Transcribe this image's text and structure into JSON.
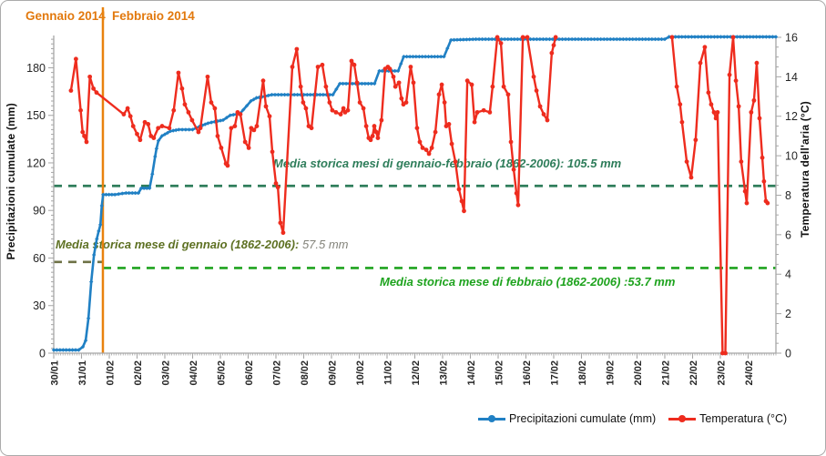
{
  "months": {
    "january_label": "Gennaio 2014",
    "february_label": "Febbraio 2014",
    "divider_color": "#e8820e"
  },
  "axes": {
    "left": {
      "title": "Precipitazioni cumulate (mm)",
      "ticks": [
        0,
        30,
        60,
        90,
        120,
        150,
        180
      ],
      "max": 200
    },
    "right": {
      "title": "Temperatura dell'aria (°C)",
      "ticks": [
        0,
        2,
        4,
        6,
        8,
        10,
        12,
        14,
        16
      ],
      "max": 16
    },
    "x": {
      "labels": [
        "30/01",
        "31/01",
        "01/02",
        "02/02",
        "03/02",
        "04/02",
        "05/02",
        "06/02",
        "07/02",
        "08/02",
        "09/02",
        "10/02",
        "11/02",
        "12/02",
        "13/02",
        "14/02",
        "15/02",
        "16/02",
        "17/02",
        "18/02",
        "19/02",
        "20/02",
        "21/02",
        "22/02",
        "23/02",
        "24/02"
      ]
    }
  },
  "annotations": {
    "jan_feb": {
      "text": "Media storica mesi di gennaio-febbraio (1862-2006): 105.5 mm",
      "value_mm": 105.5,
      "color": "#2e7d5a"
    },
    "jan": {
      "text_bold": "Media storica mese di gennaio (1862-2006):",
      "text_value": " 57.5 mm",
      "value_mm": 57.5,
      "color_bold": "#5e7123",
      "color_value": "#83837a",
      "line_color": "#6e7246"
    },
    "feb": {
      "text": "Media storica mese di febbraio (1862-2006) :53.7 mm",
      "value_mm": 53.7,
      "color": "#1ea31e"
    }
  },
  "legend": [
    {
      "label": "Precipitazioni cumulate (mm)",
      "color": "#2080c4"
    },
    {
      "label": "Temperatura (°C)",
      "color": "#ee2c1e"
    }
  ],
  "chart_data": {
    "type": "line",
    "title": "",
    "x_unit": "days since 30/01/2014 00:00",
    "x_tick_labels": [
      "30/01",
      "31/01",
      "01/02",
      "02/02",
      "03/02",
      "04/02",
      "05/02",
      "06/02",
      "07/02",
      "08/02",
      "09/02",
      "10/02",
      "11/02",
      "12/02",
      "13/02",
      "14/02",
      "15/02",
      "16/02",
      "17/02",
      "18/02",
      "19/02",
      "20/02",
      "21/02",
      "22/02",
      "23/02",
      "24/02"
    ],
    "x_range_days": [
      0,
      26
    ],
    "month_boundary_day": 1.77,
    "left_axis": {
      "label": "Precipitazioni cumulate (mm)",
      "range": [
        0,
        200
      ]
    },
    "right_axis": {
      "label": "Temperatura dell'aria (°C)",
      "range": [
        0,
        16
      ]
    },
    "reference_lines": [
      {
        "name": "media-storica-gennaio-febbraio",
        "value_mm": 105.5,
        "span_days": [
          0,
          26
        ],
        "color": "#2e7d5a"
      },
      {
        "name": "media-storica-gennaio",
        "value_mm": 57.5,
        "span_days": [
          0,
          1.77
        ],
        "color": "#6e7246"
      },
      {
        "name": "media-storica-febbraio",
        "value_mm": 53.7,
        "span_days": [
          1.77,
          26
        ],
        "color": "#1ea31e"
      }
    ],
    "series": [
      {
        "name": "Precipitazioni cumulate (mm)",
        "axis": "left",
        "color": "#2080c4",
        "marker": "diamond",
        "points": [
          [
            0,
            2
          ],
          [
            0.9,
            2
          ],
          [
            1.05,
            4
          ],
          [
            1.15,
            8
          ],
          [
            1.25,
            22
          ],
          [
            1.35,
            45
          ],
          [
            1.45,
            62
          ],
          [
            1.55,
            72
          ],
          [
            1.62,
            77
          ],
          [
            1.68,
            81
          ],
          [
            1.73,
            93
          ],
          [
            1.78,
            100
          ],
          [
            2.2,
            100
          ],
          [
            2.6,
            101
          ],
          [
            3.05,
            101
          ],
          [
            3.15,
            104
          ],
          [
            3.45,
            104
          ],
          [
            3.55,
            113
          ],
          [
            3.65,
            124
          ],
          [
            3.7,
            129
          ],
          [
            3.77,
            134
          ],
          [
            3.9,
            137
          ],
          [
            4,
            138
          ],
          [
            4.2,
            140
          ],
          [
            4.5,
            141
          ],
          [
            5,
            141
          ],
          [
            5.25,
            143
          ],
          [
            5.55,
            145
          ],
          [
            5.8,
            146
          ],
          [
            6.1,
            147
          ],
          [
            6.35,
            150
          ],
          [
            6.7,
            151
          ],
          [
            6.95,
            156
          ],
          [
            7.1,
            159
          ],
          [
            7.3,
            161
          ],
          [
            7.6,
            162
          ],
          [
            7.85,
            163
          ],
          [
            10.05,
            163
          ],
          [
            10.3,
            170
          ],
          [
            11.55,
            170
          ],
          [
            11.72,
            178
          ],
          [
            12.4,
            178
          ],
          [
            12.6,
            187
          ],
          [
            14.05,
            187
          ],
          [
            14.3,
            197.5
          ],
          [
            15.2,
            198
          ],
          [
            22,
            198
          ],
          [
            22.15,
            199.5
          ],
          [
            26,
            199.5
          ]
        ]
      },
      {
        "name": "Temperatura (°C)",
        "axis": "right",
        "color": "#ee2c1e",
        "marker": "circle",
        "segments": [
          [
            [
              0.62,
              13.3
            ],
            [
              0.8,
              14.9
            ],
            [
              0.97,
              12.3
            ],
            [
              1.04,
              11.2
            ],
            [
              1.1,
              11
            ],
            [
              1.18,
              10.7
            ],
            [
              1.3,
              14
            ],
            [
              1.43,
              13.4
            ],
            [
              1.54,
              13.2
            ],
            [
              2.52,
              12.1
            ],
            [
              2.66,
              12.4
            ],
            [
              2.76,
              12
            ],
            [
              2.86,
              11.5
            ],
            [
              3,
              11.1
            ],
            [
              3.11,
              10.8
            ],
            [
              3.28,
              11.7
            ],
            [
              3.4,
              11.6
            ],
            [
              3.5,
              11
            ],
            [
              3.6,
              10.9
            ],
            [
              3.76,
              11.4
            ],
            [
              3.9,
              11.5
            ],
            [
              4.16,
              11.4
            ],
            [
              4.32,
              12.3
            ],
            [
              4.49,
              14.2
            ],
            [
              4.62,
              13.4
            ],
            [
              4.72,
              12.6
            ],
            [
              4.85,
              12.2
            ],
            [
              4.98,
              11.8
            ],
            [
              5.21,
              11.2
            ],
            [
              5.28,
              11.4
            ],
            [
              5.54,
              14
            ],
            [
              5.67,
              12.7
            ],
            [
              5.8,
              12.4
            ],
            [
              5.9,
              11
            ],
            [
              6.03,
              10.4
            ],
            [
              6.2,
              9.6
            ],
            [
              6.26,
              9.5
            ],
            [
              6.39,
              11.4
            ],
            [
              6.52,
              11.5
            ],
            [
              6.62,
              12.2
            ],
            [
              6.72,
              12.1
            ],
            [
              6.89,
              10.7
            ],
            [
              7.02,
              10.4
            ],
            [
              7.11,
              11.4
            ],
            [
              7.21,
              11.3
            ],
            [
              7.31,
              11.5
            ],
            [
              7.54,
              13.8
            ],
            [
              7.64,
              12.5
            ],
            [
              7.77,
              12
            ],
            [
              7.87,
              10.2
            ],
            [
              8,
              8.6
            ],
            [
              8.07,
              8.4
            ],
            [
              8.16,
              6.6
            ],
            [
              8.26,
              6.1
            ],
            [
              8.59,
              14.5
            ],
            [
              8.75,
              15.4
            ],
            [
              8.89,
              13.5
            ],
            [
              8.98,
              12.7
            ],
            [
              9.08,
              12.4
            ],
            [
              9.18,
              11.5
            ],
            [
              9.28,
              11.4
            ],
            [
              9.51,
              14.5
            ],
            [
              9.67,
              14.6
            ],
            [
              9.8,
              13.5
            ],
            [
              9.93,
              12.7
            ],
            [
              10.03,
              12.3
            ],
            [
              10.16,
              12.2
            ],
            [
              10.33,
              12.1
            ],
            [
              10.43,
              12.4
            ],
            [
              10.49,
              12.2
            ],
            [
              10.59,
              12.3
            ],
            [
              10.72,
              14.8
            ],
            [
              10.82,
              14.6
            ],
            [
              10.92,
              13.7
            ],
            [
              11.02,
              12.7
            ],
            [
              11.15,
              12.4
            ],
            [
              11.25,
              11.5
            ],
            [
              11.34,
              10.9
            ],
            [
              11.41,
              10.8
            ],
            [
              11.48,
              11
            ],
            [
              11.54,
              11.5
            ],
            [
              11.61,
              11.2
            ],
            [
              11.67,
              10.9
            ],
            [
              11.8,
              11.8
            ],
            [
              11.93,
              14.4
            ],
            [
              12.03,
              14.5
            ],
            [
              12.1,
              14.4
            ],
            [
              12.23,
              14
            ],
            [
              12.3,
              13.5
            ],
            [
              12.43,
              13.7
            ],
            [
              12.52,
              12.9
            ],
            [
              12.59,
              12.6
            ],
            [
              12.69,
              12.7
            ],
            [
              12.85,
              14.5
            ],
            [
              12.95,
              13.7
            ],
            [
              13.08,
              11.4
            ],
            [
              13.18,
              10.7
            ],
            [
              13.28,
              10.4
            ],
            [
              13.41,
              10.3
            ],
            [
              13.51,
              10.1
            ],
            [
              13.61,
              10.4
            ],
            [
              13.74,
              11.2
            ],
            [
              13.87,
              13.1
            ],
            [
              13.97,
              13.6
            ],
            [
              14.07,
              12.7
            ],
            [
              14.13,
              11.5
            ],
            [
              14.23,
              11.6
            ],
            [
              14.33,
              10.6
            ],
            [
              14.46,
              9.7
            ],
            [
              14.59,
              8.3
            ],
            [
              14.69,
              7.7
            ],
            [
              14.77,
              7.2
            ],
            [
              14.89,
              13.8
            ],
            [
              15.05,
              13.6
            ],
            [
              15.15,
              11.7
            ],
            [
              15.25,
              12.2
            ],
            [
              15.48,
              12.3
            ],
            [
              15.7,
              12.2
            ],
            [
              15.8,
              13.5
            ],
            [
              15.97,
              16
            ],
            [
              16.1,
              15.7
            ],
            [
              16.2,
              13.5
            ],
            [
              16.36,
              13.1
            ],
            [
              16.46,
              10.7
            ],
            [
              16.56,
              9.3
            ],
            [
              16.66,
              8.1
            ],
            [
              16.72,
              7.5
            ],
            [
              16.89,
              16
            ],
            [
              17.05,
              16
            ],
            [
              17.28,
              14
            ],
            [
              17.38,
              13.3
            ],
            [
              17.51,
              12.5
            ],
            [
              17.64,
              12.1
            ],
            [
              17.77,
              11.8
            ],
            [
              17.93,
              15.2
            ],
            [
              18,
              15.6
            ],
            [
              18.07,
              16
            ]
          ],
          [
            [
              22.26,
              16
            ],
            [
              22.43,
              13.5
            ],
            [
              22.55,
              12.6
            ],
            [
              22.62,
              11.7
            ],
            [
              22.79,
              9.7
            ],
            [
              22.95,
              8.9
            ],
            [
              23.11,
              10.8
            ],
            [
              23.28,
              14.7
            ],
            [
              23.44,
              15.5
            ],
            [
              23.57,
              13.2
            ],
            [
              23.67,
              12.6
            ],
            [
              23.77,
              12.2
            ],
            [
              23.84,
              11.9
            ],
            [
              23.9,
              12.2
            ],
            [
              24.08,
              0
            ],
            [
              24.18,
              0
            ],
            [
              24.33,
              14.1
            ],
            [
              24.46,
              16
            ],
            [
              24.56,
              13.8
            ],
            [
              24.66,
              12.5
            ],
            [
              24.75,
              9.7
            ],
            [
              24.89,
              8.2
            ],
            [
              24.95,
              7.6
            ],
            [
              25.11,
              12.2
            ],
            [
              25.21,
              12.8
            ],
            [
              25.31,
              14.7
            ],
            [
              25.41,
              11.9
            ],
            [
              25.51,
              9.9
            ],
            [
              25.57,
              8.7
            ],
            [
              25.64,
              7.7
            ],
            [
              25.7,
              7.6
            ]
          ]
        ]
      }
    ]
  }
}
